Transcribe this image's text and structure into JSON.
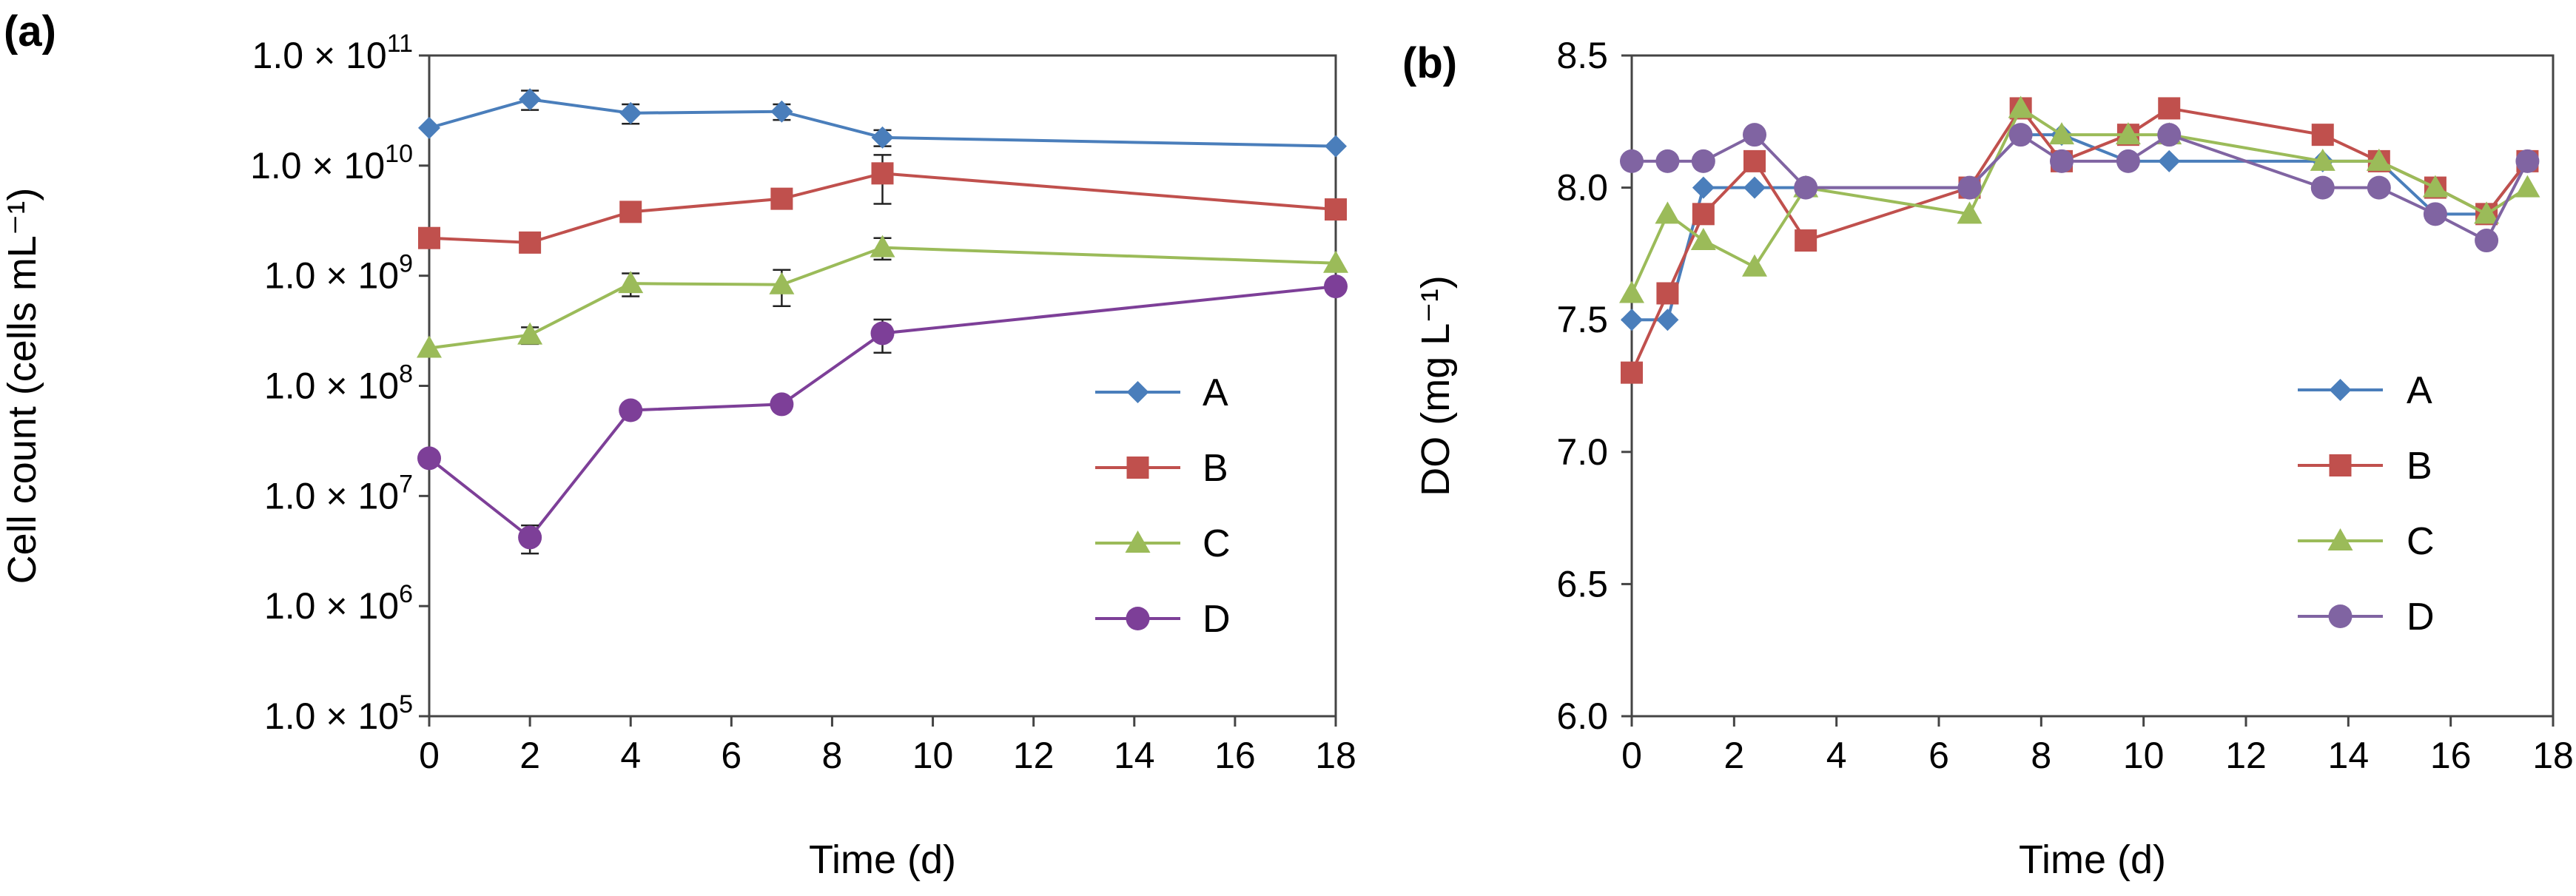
{
  "chart_data": [
    {
      "panel": "(a)",
      "type": "line",
      "xlabel": "Time (d)",
      "ylabel": "Cell count (cells mL⁻¹)",
      "yscale": "log",
      "xlim": [
        0,
        18
      ],
      "ylim": [
        100000,
        100000000000
      ],
      "xticks": [
        0,
        2,
        4,
        6,
        8,
        10,
        12,
        14,
        16,
        18
      ],
      "yticks": [
        {
          "value": 100000,
          "mantissa": "1.0 × 10",
          "exponent": "5"
        },
        {
          "value": 1000000,
          "mantissa": "1.0 × 10",
          "exponent": "6"
        },
        {
          "value": 10000000,
          "mantissa": "1.0 × 10",
          "exponent": "7"
        },
        {
          "value": 100000000,
          "mantissa": "1.0 × 10",
          "exponent": "8"
        },
        {
          "value": 1000000000,
          "mantissa": "1.0 × 10",
          "exponent": "9"
        },
        {
          "value": 10000000000,
          "mantissa": "1.0 × 10",
          "exponent": "10"
        },
        {
          "value": 100000000000,
          "mantissa": "1.0 × 10",
          "exponent": "11"
        }
      ],
      "legend_position": "center-right",
      "grid": false,
      "series": [
        {
          "name": "A",
          "color": "#4a7ebb",
          "marker": "diamond",
          "x": [
            0,
            2,
            4,
            7,
            9,
            18
          ],
          "y": [
            22000000000,
            40000000000,
            30000000000,
            31000000000,
            18000000000,
            15000000000
          ],
          "err": [
            0,
            8000000000,
            6000000000,
            5000000000,
            3000000000,
            0
          ]
        },
        {
          "name": "B",
          "color": "#c0504d",
          "marker": "square",
          "x": [
            0,
            2,
            4,
            7,
            9,
            18
          ],
          "y": [
            2200000000,
            2000000000,
            3800000000,
            5000000000,
            8500000000,
            4000000000
          ],
          "err": [
            0,
            0,
            0,
            0,
            4000000000,
            0
          ]
        },
        {
          "name": "C",
          "color": "#9bbb59",
          "marker": "triangle",
          "x": [
            0,
            2,
            4,
            7,
            9,
            18
          ],
          "y": [
            220000000,
            290000000,
            850000000,
            830000000,
            1800000000,
            1300000000
          ],
          "err": [
            0,
            50000000,
            200000000,
            300000000,
            400000000,
            0
          ]
        },
        {
          "name": "D",
          "color": "#7d3f98",
          "marker": "circle",
          "x": [
            0,
            2,
            4,
            7,
            9,
            18
          ],
          "y": [
            22000000,
            4200000,
            60000000,
            68000000,
            300000000,
            800000000
          ],
          "err": [
            0,
            1200000,
            0,
            0,
            100000000,
            0
          ]
        }
      ]
    },
    {
      "panel": "(b)",
      "type": "line",
      "xlabel": "Time (d)",
      "ylabel": "DO (mg L⁻¹)",
      "yscale": "linear",
      "xlim": [
        0,
        18
      ],
      "ylim": [
        6.0,
        8.5
      ],
      "xticks": [
        0,
        2,
        4,
        6,
        8,
        10,
        12,
        14,
        16,
        18
      ],
      "yticks": [
        6.0,
        6.5,
        7.0,
        7.5,
        8.0,
        8.5
      ],
      "legend_position": "bottom-right",
      "grid": false,
      "series": [
        {
          "name": "A",
          "color": "#4a7ebb",
          "marker": "diamond",
          "x": [
            0,
            0.7,
            1.4,
            2.4,
            3.4,
            6.6,
            7.6,
            8.4,
            9.7,
            10.5,
            13.5,
            14.6,
            15.7,
            16.7,
            17.5
          ],
          "y": [
            7.5,
            7.5,
            8.0,
            8.0,
            8.0,
            8.0,
            8.2,
            8.2,
            8.1,
            8.1,
            8.1,
            8.1,
            7.9,
            7.9,
            8.1
          ]
        },
        {
          "name": "B",
          "color": "#c0504d",
          "marker": "square",
          "x": [
            0,
            0.7,
            1.4,
            2.4,
            3.4,
            6.6,
            7.6,
            8.4,
            9.7,
            10.5,
            13.5,
            14.6,
            15.7,
            16.7,
            17.5
          ],
          "y": [
            7.3,
            7.6,
            7.9,
            8.1,
            7.8,
            8.0,
            8.3,
            8.1,
            8.2,
            8.3,
            8.2,
            8.1,
            8.0,
            7.9,
            8.1
          ]
        },
        {
          "name": "C",
          "color": "#9bbb59",
          "marker": "triangle",
          "x": [
            0,
            0.7,
            1.4,
            2.4,
            3.4,
            6.6,
            7.6,
            8.4,
            9.7,
            10.5,
            13.5,
            14.6,
            15.7,
            16.7,
            17.5
          ],
          "y": [
            7.6,
            7.9,
            7.8,
            7.7,
            8.0,
            7.9,
            8.3,
            8.2,
            8.2,
            8.2,
            8.1,
            8.1,
            8.0,
            7.9,
            8.0
          ]
        },
        {
          "name": "D",
          "color": "#8064a2",
          "marker": "circle",
          "x": [
            0,
            0.7,
            1.4,
            2.4,
            3.4,
            6.6,
            7.6,
            8.4,
            9.7,
            10.5,
            13.5,
            14.6,
            15.7,
            16.7,
            17.5
          ],
          "y": [
            8.1,
            8.1,
            8.1,
            8.2,
            8.0,
            8.0,
            8.2,
            8.1,
            8.1,
            8.2,
            8.0,
            8.0,
            7.9,
            7.8,
            8.1
          ]
        }
      ]
    }
  ]
}
